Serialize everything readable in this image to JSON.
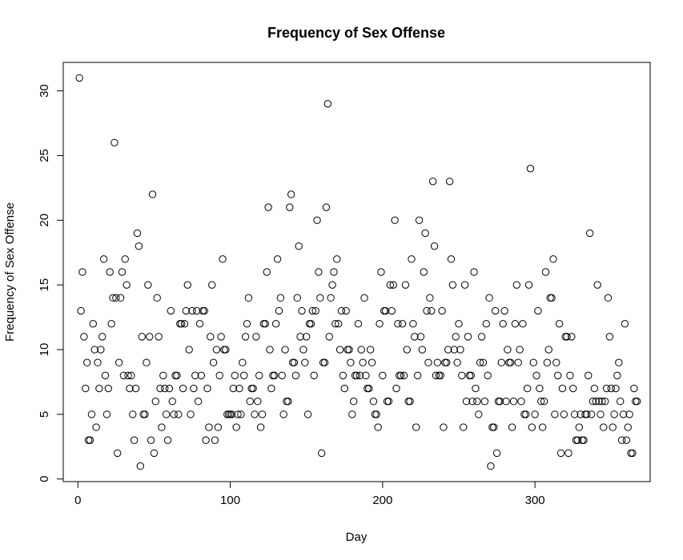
{
  "chart_data": {
    "type": "scatter",
    "title": "Frequency of Sex Offense",
    "xlabel": "Day",
    "ylabel": "Frequency of Sex Offense",
    "xlim": [
      -9.6,
      375.6
    ],
    "ylim": [
      -0.2,
      32.2
    ],
    "x_ticks": [
      0,
      100,
      200,
      300
    ],
    "y_ticks": [
      0,
      5,
      10,
      15,
      20,
      25,
      30
    ],
    "grid": false,
    "marker": "open-circle",
    "point_color": "#000000",
    "series": [
      {
        "values": [
          31,
          13,
          16,
          11,
          7,
          9,
          3,
          3,
          5,
          12,
          10,
          4,
          9,
          7,
          10,
          11,
          17,
          8,
          5,
          7,
          16,
          12,
          14,
          26,
          14,
          2,
          9,
          14,
          16,
          8,
          17,
          15,
          8,
          7,
          8,
          5,
          3,
          7,
          19,
          18,
          1,
          11,
          5,
          5,
          9,
          15,
          11,
          3,
          22,
          2,
          6,
          14,
          11,
          7,
          4,
          8,
          7,
          5,
          3,
          7,
          13,
          6,
          5,
          8,
          8,
          5,
          12,
          12,
          7,
          12,
          13,
          15,
          10,
          5,
          13,
          7,
          8,
          13,
          6,
          12,
          8,
          13,
          13,
          3,
          7,
          4,
          11,
          15,
          9,
          3,
          10,
          4,
          8,
          11,
          17,
          10,
          10,
          5,
          5,
          5,
          5,
          7,
          8,
          4,
          5,
          7,
          5,
          9,
          8,
          11,
          12,
          14,
          6,
          7,
          7,
          5,
          11,
          6,
          8,
          4,
          5,
          12,
          12,
          16,
          21,
          10,
          7,
          8,
          8,
          12,
          17,
          13,
          14,
          8,
          5,
          10,
          6,
          6,
          21,
          22,
          9,
          9,
          8,
          14,
          18,
          11,
          13,
          10,
          9,
          11,
          5,
          12,
          12,
          13,
          8,
          13,
          20,
          16,
          14,
          2,
          9,
          9,
          21,
          29,
          11,
          14,
          15,
          16,
          12,
          17,
          12,
          10,
          13,
          8,
          7,
          13,
          10,
          10,
          9,
          5,
          6,
          8,
          8,
          12,
          8,
          10,
          9,
          14,
          8,
          7,
          7,
          10,
          9,
          6,
          5,
          5,
          4,
          12,
          16,
          8,
          13,
          13,
          6,
          6,
          15,
          13,
          15,
          20,
          7,
          12,
          8,
          8,
          12,
          8,
          15,
          10,
          6,
          6,
          17,
          12,
          11,
          4,
          8,
          20,
          11,
          10,
          16,
          19,
          13,
          9,
          14,
          13,
          23,
          18,
          8,
          9,
          8,
          8,
          13,
          4,
          9,
          9,
          10,
          23,
          17,
          15,
          10,
          11,
          9,
          12,
          10,
          8,
          4,
          15,
          6,
          11,
          8,
          8,
          6,
          16,
          7,
          6,
          5,
          9,
          11,
          9,
          6,
          12,
          8,
          14,
          1,
          4,
          4,
          13,
          2,
          6,
          6,
          9,
          12,
          13,
          6,
          10,
          9,
          9,
          4,
          6,
          12,
          15,
          9,
          10,
          6,
          12,
          5,
          5,
          7,
          15,
          24,
          4,
          9,
          5,
          8,
          13,
          7,
          6,
          4,
          6,
          16,
          9,
          10,
          14,
          14,
          17,
          5,
          9,
          8,
          12,
          2,
          7,
          5,
          11,
          11,
          2,
          8,
          11,
          7,
          5,
          3,
          3,
          4,
          5,
          3,
          3,
          5,
          5,
          8,
          19,
          5,
          6,
          7,
          6,
          15,
          6,
          5,
          6,
          4,
          6,
          7,
          14,
          11,
          7,
          4,
          5,
          7,
          8,
          9,
          6,
          3,
          5,
          12,
          3,
          4,
          5,
          2,
          2,
          7,
          6,
          6
        ]
      }
    ]
  }
}
